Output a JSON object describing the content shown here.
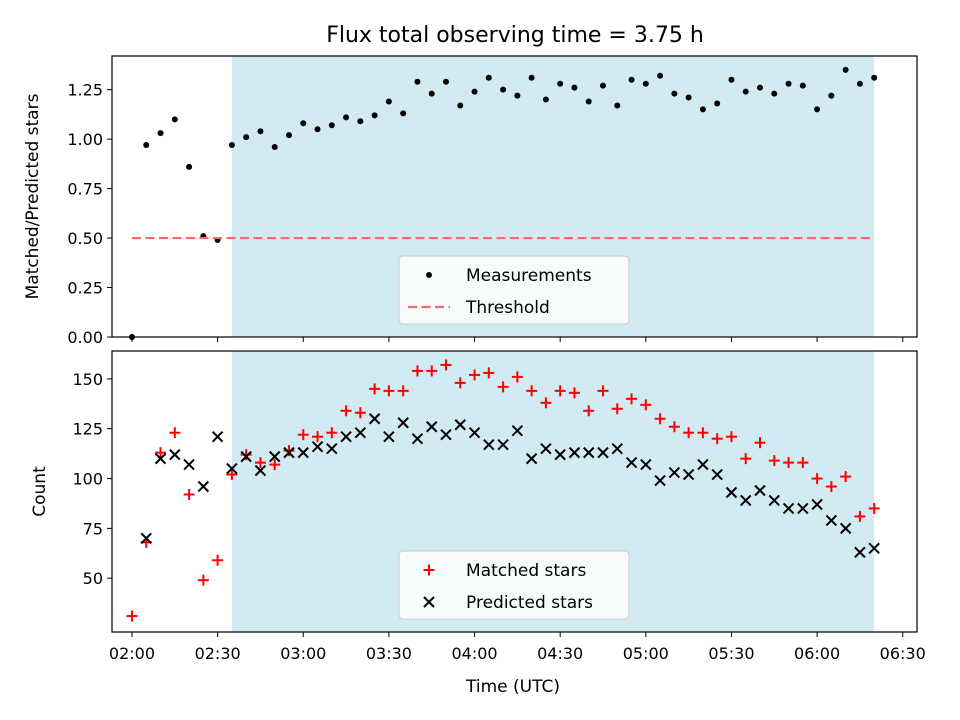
{
  "figure": {
    "title": "Flux total observing time = 3.75 h",
    "xlabel": "Time (UTC)"
  },
  "chart_data": [
    {
      "type": "scatter",
      "ylabel": "Matched/Predicted stars",
      "xlim": [
        "01:53",
        "06:35"
      ],
      "ylim": [
        0,
        1.42
      ],
      "yticks": [
        "0.00",
        "0.25",
        "0.50",
        "0.75",
        "1.00",
        "1.25"
      ],
      "ytick_values": [
        0,
        0.25,
        0.5,
        0.75,
        1.0,
        1.25
      ],
      "shaded_span": [
        "02:35",
        "06:20"
      ],
      "shade_color": "#add8e6",
      "legend_placement": "lower center",
      "series": [
        {
          "name": "Measurements",
          "marker": "dot",
          "color": "#000000",
          "x": [
            "02:00",
            "02:05",
            "02:10",
            "02:15",
            "02:20",
            "02:25",
            "02:30",
            "02:35",
            "02:40",
            "02:45",
            "02:50",
            "02:55",
            "03:00",
            "03:05",
            "03:10",
            "03:15",
            "03:20",
            "03:25",
            "03:30",
            "03:35",
            "03:40",
            "03:45",
            "03:50",
            "03:55",
            "04:00",
            "04:05",
            "04:10",
            "04:15",
            "04:20",
            "04:25",
            "04:30",
            "04:35",
            "04:40",
            "04:45",
            "04:50",
            "04:55",
            "05:00",
            "05:05",
            "05:10",
            "05:15",
            "05:20",
            "05:25",
            "05:30",
            "05:35",
            "05:40",
            "05:45",
            "05:50",
            "05:55",
            "06:00",
            "06:05",
            "06:10",
            "06:15",
            "06:20"
          ],
          "y": [
            0.0,
            0.97,
            1.03,
            1.1,
            0.86,
            0.51,
            0.49,
            0.97,
            1.01,
            1.04,
            0.96,
            1.02,
            1.08,
            1.05,
            1.07,
            1.11,
            1.09,
            1.12,
            1.19,
            1.13,
            1.29,
            1.23,
            1.29,
            1.17,
            1.24,
            1.31,
            1.25,
            1.22,
            1.31,
            1.2,
            1.28,
            1.26,
            1.19,
            1.27,
            1.17,
            1.3,
            1.28,
            1.32,
            1.23,
            1.21,
            1.15,
            1.18,
            1.3,
            1.24,
            1.26,
            1.23,
            1.28,
            1.27,
            1.15,
            1.22,
            1.35,
            1.28,
            1.31
          ]
        },
        {
          "name": "Threshold",
          "style": "dashed",
          "color": "#ff6666",
          "x": [
            "02:00",
            "06:20"
          ],
          "y": [
            0.5,
            0.5
          ]
        }
      ]
    },
    {
      "type": "scatter",
      "ylabel": "Count",
      "xlim": [
        "01:53",
        "06:35"
      ],
      "ylim": [
        23,
        164
      ],
      "yticks": [
        "50",
        "75",
        "100",
        "125",
        "150"
      ],
      "ytick_values": [
        50,
        75,
        100,
        125,
        150
      ],
      "xticks": [
        "02:00",
        "02:30",
        "03:00",
        "03:30",
        "04:00",
        "04:30",
        "05:00",
        "05:30",
        "06:00",
        "06:30"
      ],
      "shaded_span": [
        "02:35",
        "06:20"
      ],
      "shade_color": "#add8e6",
      "legend_placement": "lower center",
      "series": [
        {
          "name": "Matched stars",
          "marker": "plus",
          "color": "#ff0000",
          "x": [
            "02:00",
            "02:05",
            "02:10",
            "02:15",
            "02:20",
            "02:25",
            "02:30",
            "02:35",
            "02:40",
            "02:45",
            "02:50",
            "02:55",
            "03:00",
            "03:05",
            "03:10",
            "03:15",
            "03:20",
            "03:25",
            "03:30",
            "03:35",
            "03:40",
            "03:45",
            "03:50",
            "03:55",
            "04:00",
            "04:05",
            "04:10",
            "04:15",
            "04:20",
            "04:25",
            "04:30",
            "04:35",
            "04:40",
            "04:45",
            "04:50",
            "04:55",
            "05:00",
            "05:05",
            "05:10",
            "05:15",
            "05:20",
            "05:25",
            "05:30",
            "05:35",
            "05:40",
            "05:45",
            "05:50",
            "05:55",
            "06:00",
            "06:05",
            "06:10",
            "06:15",
            "06:20"
          ],
          "y": [
            31,
            68,
            113,
            123,
            92,
            49,
            59,
            102,
            112,
            108,
            107,
            114,
            122,
            121,
            123,
            134,
            133,
            145,
            144,
            144,
            154,
            154,
            157,
            148,
            152,
            153,
            146,
            151,
            144,
            138,
            144,
            143,
            134,
            144,
            135,
            140,
            137,
            130,
            126,
            123,
            123,
            120,
            121,
            110,
            118,
            109,
            108,
            108,
            100,
            96,
            101,
            81,
            85
          ]
        },
        {
          "name": "Predicted stars",
          "marker": "x",
          "color": "#000000",
          "x": [
            "02:05",
            "02:10",
            "02:15",
            "02:20",
            "02:25",
            "02:30",
            "02:35",
            "02:40",
            "02:45",
            "02:50",
            "02:55",
            "03:00",
            "03:05",
            "03:10",
            "03:15",
            "03:20",
            "03:25",
            "03:30",
            "03:35",
            "03:40",
            "03:45",
            "03:50",
            "03:55",
            "04:00",
            "04:05",
            "04:10",
            "04:15",
            "04:20",
            "04:25",
            "04:30",
            "04:35",
            "04:40",
            "04:45",
            "04:50",
            "04:55",
            "05:00",
            "05:05",
            "05:10",
            "05:15",
            "05:20",
            "05:25",
            "05:30",
            "05:35",
            "05:40",
            "05:45",
            "05:50",
            "05:55",
            "06:00",
            "06:05",
            "06:10",
            "06:15",
            "06:20"
          ],
          "y": [
            70,
            110,
            112,
            107,
            96,
            121,
            105,
            111,
            104,
            111,
            113,
            113,
            116,
            115,
            121,
            123,
            130,
            121,
            128,
            120,
            126,
            122,
            127,
            123,
            117,
            117,
            124,
            110,
            115,
            112,
            113,
            113,
            113,
            115,
            108,
            107,
            99,
            103,
            102,
            107,
            102,
            93,
            89,
            94,
            89,
            85,
            85,
            87,
            79,
            75,
            63,
            65
          ]
        }
      ]
    }
  ]
}
